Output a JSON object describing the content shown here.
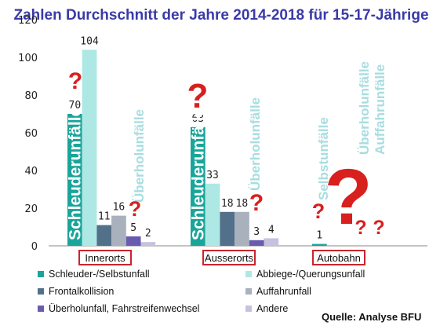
{
  "chart_data": {
    "type": "bar",
    "title": "Zahlen Durchschnitt der Jahre 2014-2018 für 15-17-Jährige",
    "ylim": [
      0,
      120
    ],
    "yticks": [
      "0",
      "20",
      "40",
      "60",
      "80",
      "100",
      "120"
    ],
    "grid": false,
    "legend_position": "bottom",
    "categories": [
      "Innerorts",
      "Ausserorts",
      "Autobahn"
    ],
    "series": [
      {
        "name": "Schleuder-/Selbstunfall",
        "color": "#1aa59a",
        "values": [
          70,
          63,
          1
        ],
        "labels": [
          "70",
          "63",
          "1"
        ]
      },
      {
        "name": "Abbiege-/Querungsunfall",
        "color": "#aee8e4",
        "values": [
          104,
          33,
          null
        ],
        "labels": [
          "104",
          "33",
          ""
        ]
      },
      {
        "name": "Frontalkollision",
        "color": "#52708a",
        "values": [
          11,
          18,
          null
        ],
        "labels": [
          "11",
          "18",
          ""
        ]
      },
      {
        "name": "Auffahrunfall",
        "color": "#a9b1bd",
        "values": [
          16,
          18,
          null
        ],
        "labels": [
          "16",
          "18",
          ""
        ]
      },
      {
        "name": "Überholunfall, Fahrstreifenwechsel",
        "color": "#6a5bb0",
        "values": [
          5,
          3,
          null
        ],
        "labels": [
          "5",
          "3",
          ""
        ]
      },
      {
        "name": "Andere",
        "color": "#c4c2e0",
        "values": [
          2,
          4,
          null
        ],
        "labels": [
          "2",
          "4",
          ""
        ]
      }
    ],
    "annotations": {
      "in_bar_label": "Schleuderunfälle",
      "innerorts_rotated": "Überholunfälle",
      "ausserorts_rotated": "Überholunfälle",
      "autobahn_rotated_1": "Selbstunfälle",
      "autobahn_rotated_2": "Überholunfälle",
      "autobahn_rotated_3": "Auffahrunfälle",
      "question_mark": "?"
    },
    "source": "Quelle: Analyse BFU"
  }
}
